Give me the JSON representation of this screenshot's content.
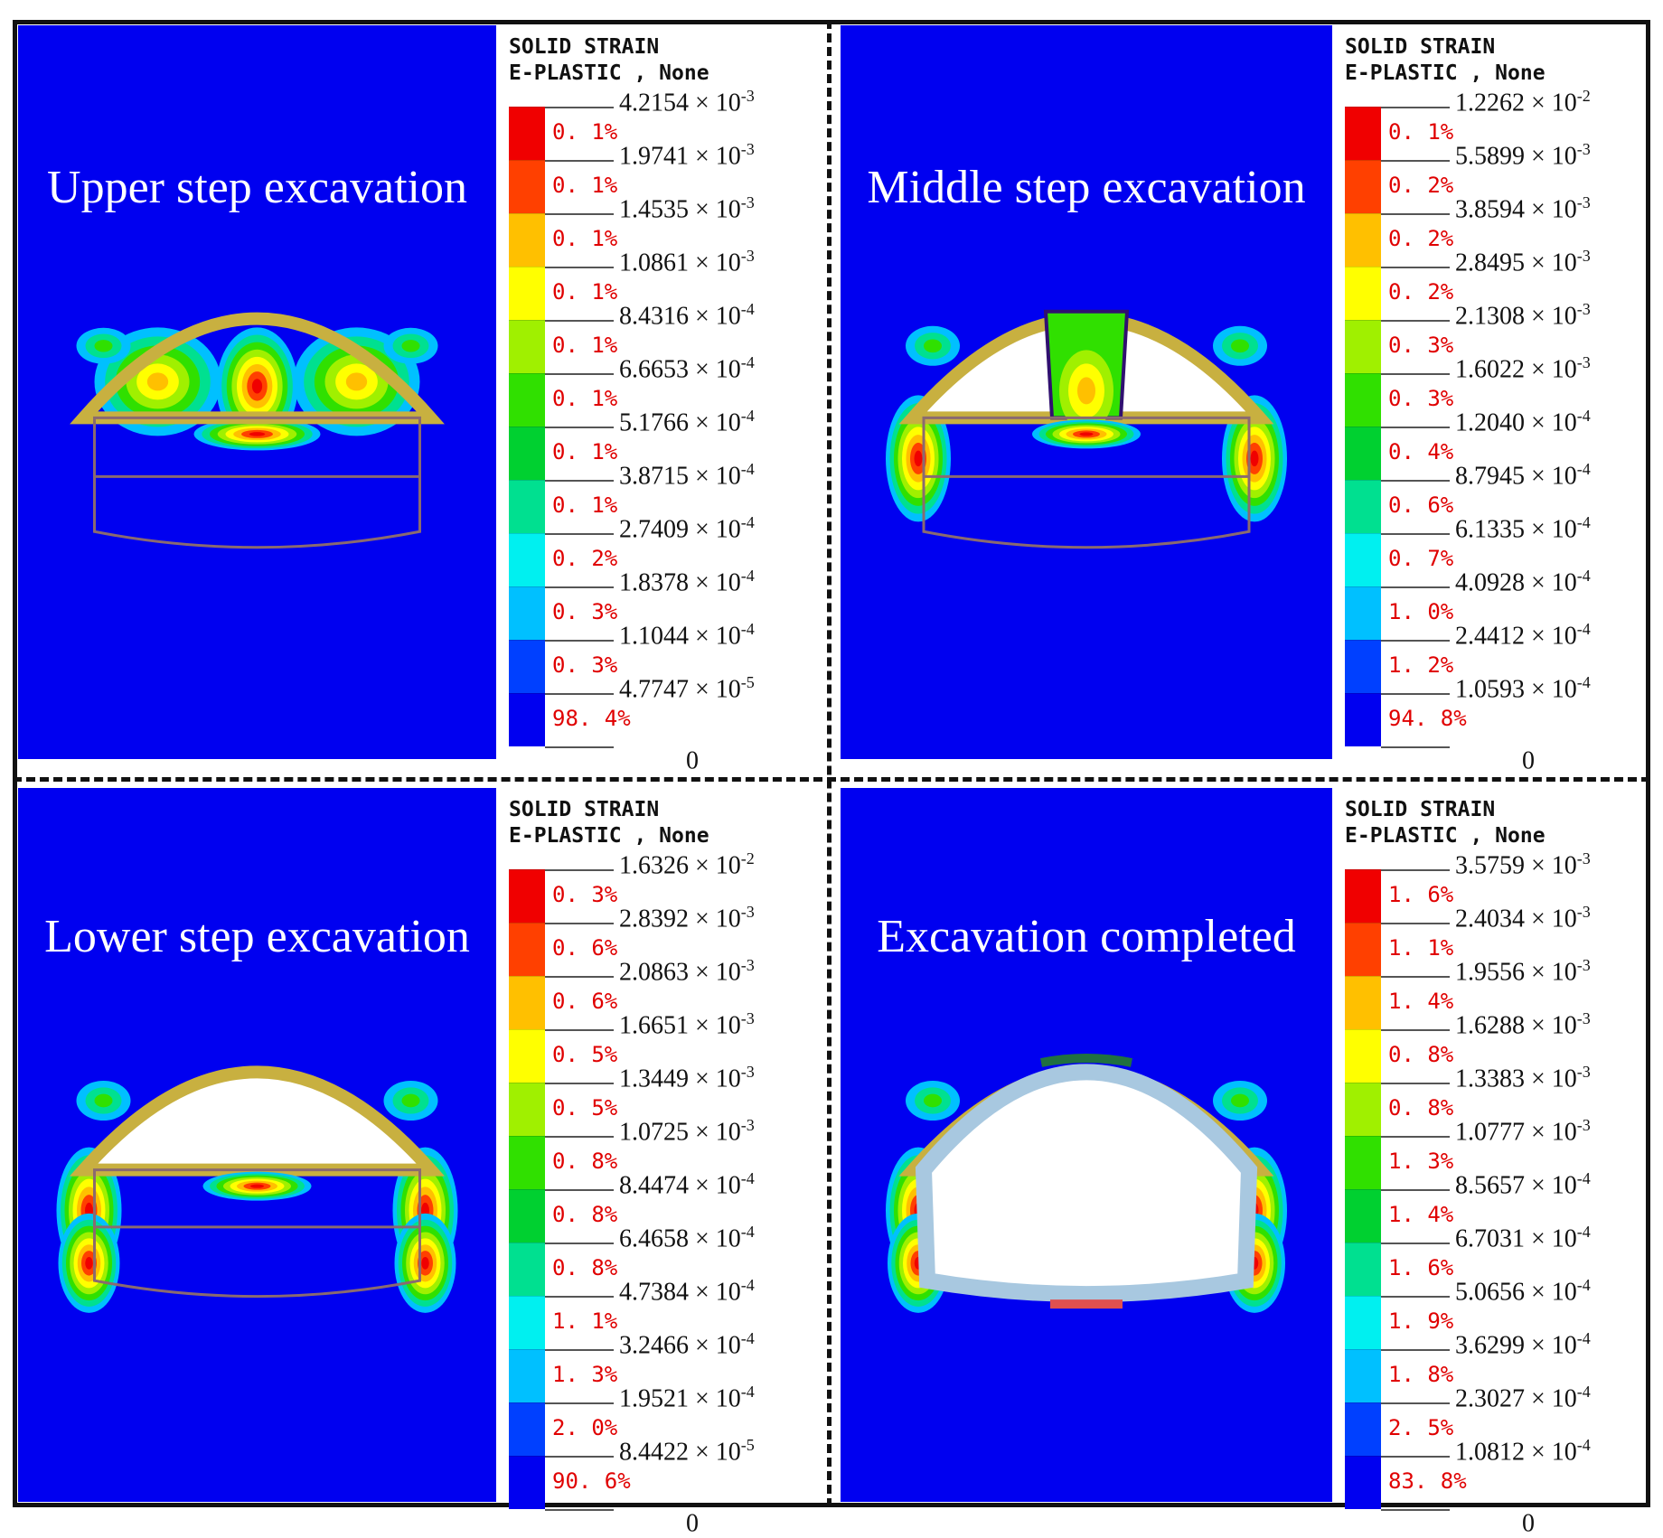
{
  "panels": [
    {
      "title": "Upper step excavation",
      "stage": 1,
      "legend": {
        "header_line1": "SOLID STRAIN",
        "header_line2": "E-PLASTIC , None",
        "values": [
          "4.2154 × 10",
          "1.9741 × 10",
          "1.4535 × 10",
          "1.0861 × 10",
          "8.4316 × 10",
          "6.6653 × 10",
          "5.1766 × 10",
          "3.8715 × 10",
          "2.7409 × 10",
          "1.8378 × 10",
          "1.1044 × 10",
          "4.7747 × 10",
          "0"
        ],
        "exponents": [
          "-3",
          "-3",
          "-3",
          "-3",
          "-4",
          "-4",
          "-4",
          "-4",
          "-4",
          "-4",
          "-4",
          "-5",
          ""
        ],
        "percents": [
          "0. 1%",
          "0. 1%",
          "0. 1%",
          "0. 1%",
          "0. 1%",
          "0. 1%",
          "0. 1%",
          "0. 1%",
          "0. 2%",
          "0. 3%",
          "0. 3%",
          "98. 4%"
        ]
      }
    },
    {
      "title": "Middle step excavation",
      "stage": 2,
      "legend": {
        "header_line1": "SOLID STRAIN",
        "header_line2": "E-PLASTIC , None",
        "values": [
          "1.2262 × 10",
          "5.5899 × 10",
          "3.8594 × 10",
          "2.8495 × 10",
          "2.1308 × 10",
          "1.6022 × 10",
          "1.2040 × 10",
          "8.7945 × 10",
          "6.1335 × 10",
          "4.0928 × 10",
          "2.4412 × 10",
          "1.0593 × 10",
          "0"
        ],
        "exponents": [
          "-2",
          "-3",
          "-3",
          "-3",
          "-3",
          "-3",
          "-4",
          "-4",
          "-4",
          "-4",
          "-4",
          "-4",
          ""
        ],
        "percents": [
          "0. 1%",
          "0. 2%",
          "0. 2%",
          "0. 2%",
          "0. 3%",
          "0. 3%",
          "0. 4%",
          "0. 6%",
          "0. 7%",
          "1. 0%",
          "1. 2%",
          "94. 8%"
        ]
      }
    },
    {
      "title": "Lower step excavation",
      "stage": 3,
      "legend": {
        "header_line1": "SOLID STRAIN",
        "header_line2": "E-PLASTIC , None",
        "values": [
          "1.6326 × 10",
          "2.8392 × 10",
          "2.0863 × 10",
          "1.6651 × 10",
          "1.3449 × 10",
          "1.0725 × 10",
          "8.4474 × 10",
          "6.4658 × 10",
          "4.7384 × 10",
          "3.2466 × 10",
          "1.9521 × 10",
          "8.4422 × 10",
          "0"
        ],
        "exponents": [
          "-2",
          "-3",
          "-3",
          "-3",
          "-3",
          "-3",
          "-4",
          "-4",
          "-4",
          "-4",
          "-4",
          "-5",
          ""
        ],
        "percents": [
          "0. 3%",
          "0. 6%",
          "0. 6%",
          "0. 5%",
          "0. 5%",
          "0. 8%",
          "0. 8%",
          "0. 8%",
          "1. 1%",
          "1. 3%",
          "2. 0%",
          "90. 6%"
        ]
      }
    },
    {
      "title": "Excavation completed",
      "stage": 4,
      "legend": {
        "header_line1": "SOLID STRAIN",
        "header_line2": "E-PLASTIC , None",
        "values": [
          "3.5759 × 10",
          "2.4034 × 10",
          "1.9556 × 10",
          "1.6288 × 10",
          "1.3383 × 10",
          "1.0777 × 10",
          "8.5657 × 10",
          "6.7031 × 10",
          "5.0656 × 10",
          "3.6299 × 10",
          "2.3027 × 10",
          "1.0812 × 10",
          "0"
        ],
        "exponents": [
          "-3",
          "-3",
          "-3",
          "-3",
          "-3",
          "-3",
          "-4",
          "-4",
          "-4",
          "-4",
          "-4",
          "-4",
          ""
        ],
        "percents": [
          "1. 6%",
          "1. 1%",
          "1. 4%",
          "0. 8%",
          "0. 8%",
          "1. 3%",
          "1. 4%",
          "1. 6%",
          "1. 9%",
          "1. 8%",
          "2. 5%",
          "83. 8%"
        ]
      }
    }
  ],
  "colors": {
    "background": "#0000f0",
    "scale": [
      "#f00000",
      "#ff4000",
      "#ffc000",
      "#ffff00",
      "#a0f000",
      "#30e000",
      "#00d030",
      "#00e090",
      "#00f0f0",
      "#00c0ff",
      "#0040ff",
      "#0000f0"
    ],
    "percent_text": "#e00000",
    "lining": "#c8b040"
  }
}
